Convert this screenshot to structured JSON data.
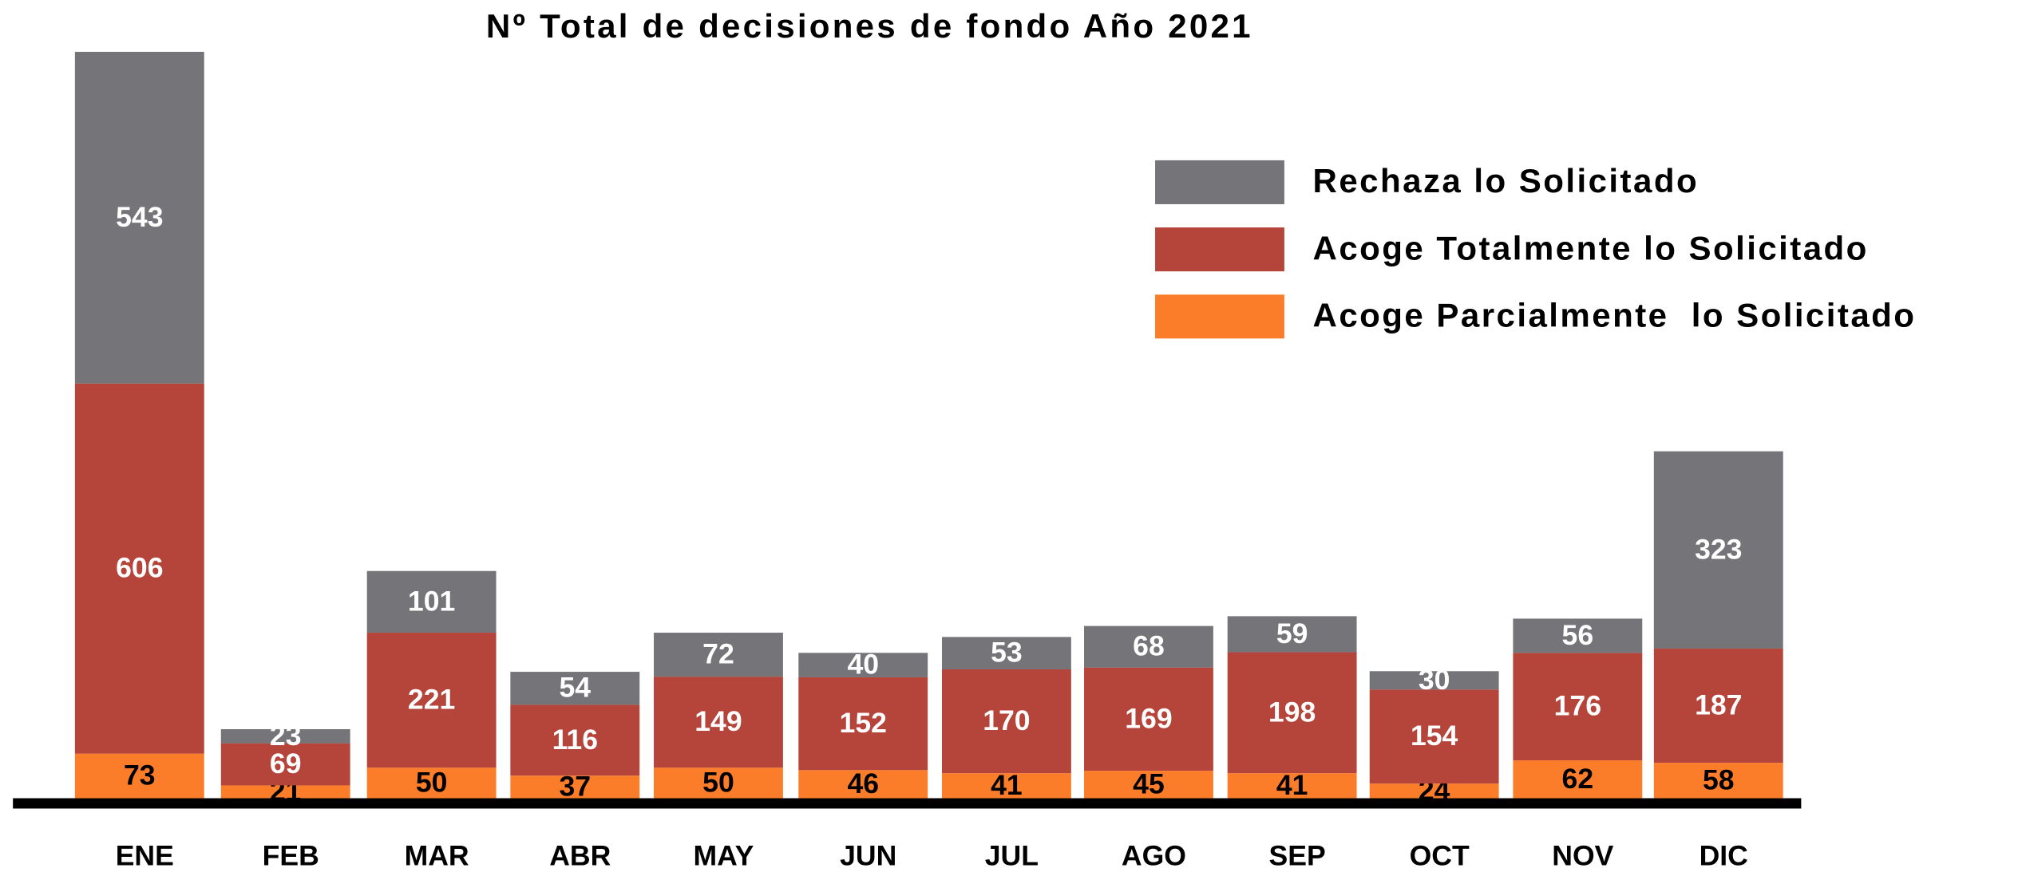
{
  "chart_data": {
    "type": "stacked_bar",
    "title": "Nº Total de decisiones de fondo Año 2021",
    "categories": [
      "ENE",
      "FEB",
      "MAR",
      "ABR",
      "MAY",
      "JUN",
      "JUL",
      "AGO",
      "SEP",
      "OCT",
      "NOV",
      "DIC"
    ],
    "series": [
      {
        "name": "Acoge Parcialmente  lo Solicitado",
        "color": "#fb7d2a",
        "label_color": "#000000",
        "values": [
          73,
          21,
          50,
          37,
          50,
          46,
          41,
          45,
          41,
          24,
          62,
          58
        ]
      },
      {
        "name": "Acoge Totalmente lo Solicitado",
        "color": "#b5443a",
        "label_color": "#ffffff",
        "values": [
          606,
          69,
          221,
          116,
          149,
          152,
          170,
          169,
          198,
          154,
          176,
          187
        ]
      },
      {
        "name": "Rechaza lo Solicitado",
        "color": "#757478",
        "label_color": "#ffffff",
        "values": [
          543,
          23,
          101,
          54,
          72,
          40,
          53,
          68,
          59,
          30,
          56,
          323
        ]
      }
    ],
    "legend_position": "upper right"
  }
}
